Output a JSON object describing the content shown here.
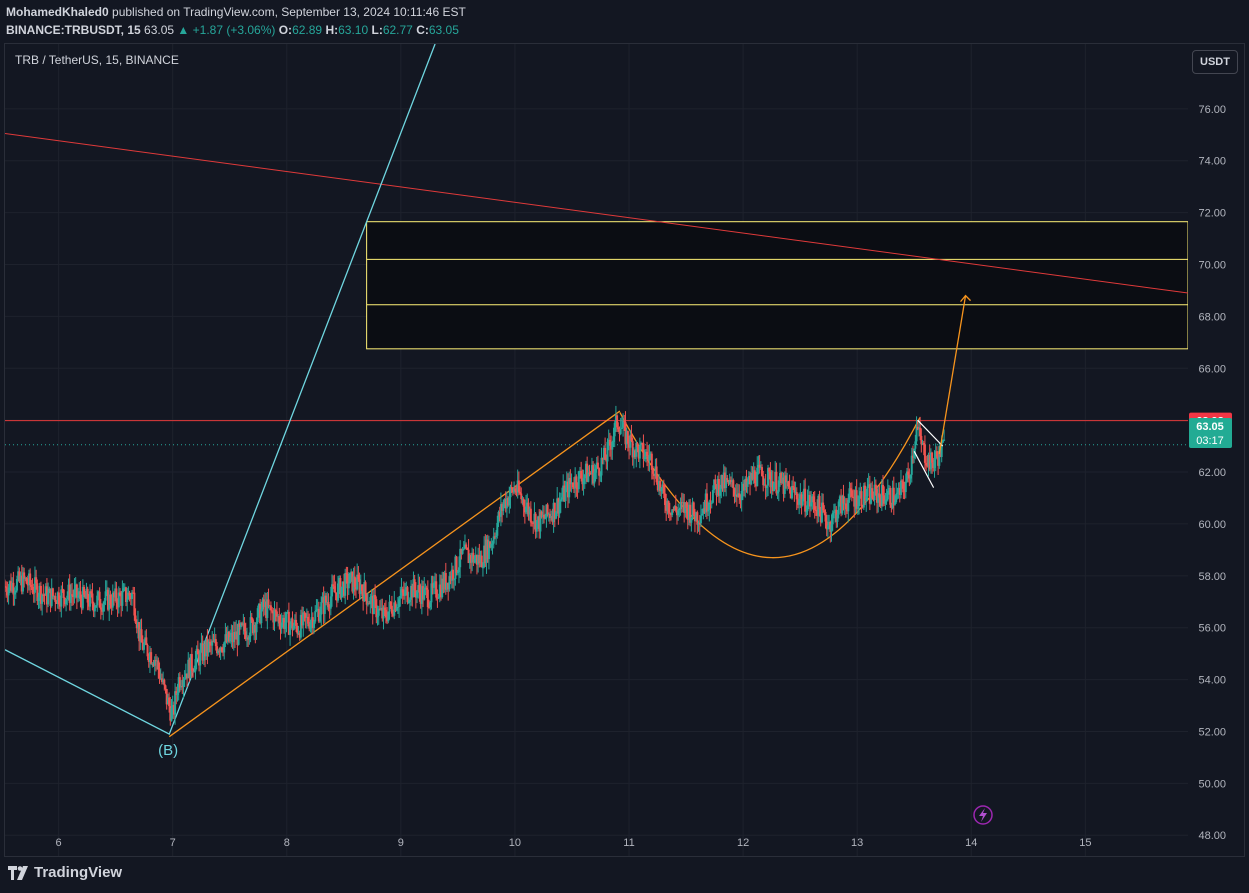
{
  "header": {
    "author": "MohamedKhaled0",
    "published": "published on TradingView.com, September 13, 2024 10:11:46 EST",
    "symbol": "BINANCE:TRBUSDT, 15",
    "last": "63.05",
    "change": "+1.87 (+3.06%)",
    "o_label": "O:",
    "o": "62.89",
    "h_label": "H:",
    "h": "63.10",
    "l_label": "L:",
    "l": "62.77",
    "c_label": "C:",
    "c": "63.05"
  },
  "chart_title": "TRB / TetherUS, 15, BINANCE",
  "currency_button": "USDT",
  "footer_brand": "TradingView",
  "colors": {
    "background": "#131722",
    "up": "#26a69a",
    "down": "#ef5350",
    "grid": "#1e222d",
    "trend_cyan": "#6fd6e0",
    "trend_orange": "#f7941d",
    "zone_yellow": "#fff176",
    "resistance_red": "#f23645"
  },
  "chart_data": {
    "type": "candlestick",
    "x_ticks": [
      "6",
      "7",
      "8",
      "9",
      "10",
      "11",
      "12",
      "13",
      "14",
      "15"
    ],
    "y_ticks": [
      "76.00",
      "74.00",
      "72.00",
      "70.00",
      "68.00",
      "66.00",
      "64.00",
      "62.00",
      "60.00",
      "58.00",
      "56.00",
      "54.00",
      "52.00",
      "50.00",
      "48.00"
    ],
    "ylim": [
      47.2,
      78.5
    ],
    "xlim": [
      5.53,
      15.9
    ],
    "price_path": [
      [
        5.53,
        57.6
      ],
      [
        5.7,
        57.8
      ],
      [
        5.9,
        57.2
      ],
      [
        6.1,
        57.3
      ],
      [
        6.3,
        57.0
      ],
      [
        6.5,
        57.1
      ],
      [
        6.65,
        57.3
      ],
      [
        6.72,
        55.4
      ],
      [
        6.85,
        54.8
      ],
      [
        6.95,
        53.2
      ],
      [
        7.0,
        52.6
      ],
      [
        7.05,
        54.0
      ],
      [
        7.15,
        54.5
      ],
      [
        7.3,
        55.2
      ],
      [
        7.5,
        55.5
      ],
      [
        7.7,
        56.1
      ],
      [
        7.8,
        56.8
      ],
      [
        7.95,
        56.3
      ],
      [
        8.1,
        56.0
      ],
      [
        8.25,
        56.5
      ],
      [
        8.4,
        57.3
      ],
      [
        8.55,
        57.8
      ],
      [
        8.65,
        57.6
      ],
      [
        8.75,
        56.9
      ],
      [
        8.85,
        56.4
      ],
      [
        8.95,
        57.0
      ],
      [
        9.1,
        57.5
      ],
      [
        9.25,
        57.2
      ],
      [
        9.4,
        57.8
      ],
      [
        9.55,
        58.8
      ],
      [
        9.7,
        58.6
      ],
      [
        9.8,
        59.4
      ],
      [
        9.9,
        60.8
      ],
      [
        10.0,
        61.4
      ],
      [
        10.1,
        60.7
      ],
      [
        10.2,
        60.0
      ],
      [
        10.35,
        60.6
      ],
      [
        10.5,
        61.6
      ],
      [
        10.6,
        61.9
      ],
      [
        10.7,
        62.0
      ],
      [
        10.8,
        62.6
      ],
      [
        10.9,
        64.0
      ],
      [
        10.97,
        63.4
      ],
      [
        11.05,
        62.9
      ],
      [
        11.2,
        62.5
      ],
      [
        11.3,
        61.0
      ],
      [
        11.4,
        60.5
      ],
      [
        11.5,
        60.6
      ],
      [
        11.6,
        60.3
      ],
      [
        11.7,
        61.0
      ],
      [
        11.8,
        61.6
      ],
      [
        11.9,
        61.4
      ],
      [
        12.0,
        61.2
      ],
      [
        12.1,
        61.9
      ],
      [
        12.2,
        61.8
      ],
      [
        12.35,
        61.5
      ],
      [
        12.5,
        61.0
      ],
      [
        12.65,
        60.7
      ],
      [
        12.75,
        60.0
      ],
      [
        12.85,
        60.7
      ],
      [
        12.95,
        61.0
      ],
      [
        13.1,
        61.1
      ],
      [
        13.25,
        61.1
      ],
      [
        13.35,
        61.0
      ],
      [
        13.45,
        61.8
      ],
      [
        13.52,
        63.7
      ],
      [
        13.58,
        62.8
      ],
      [
        13.65,
        62.3
      ],
      [
        13.72,
        62.7
      ],
      [
        13.77,
        63.05
      ]
    ],
    "annotations": {
      "wave_label": "(B)",
      "resistance_price": "63.98",
      "last_price": "63.05",
      "countdown": "03:17"
    },
    "drawings": {
      "resistance_line": 63.98,
      "zone_outer": [
        66.75,
        71.65
      ],
      "zone_inner_lines": [
        70.2,
        68.45
      ],
      "cyan_trendline": [
        [
          5.53,
          55.15
        ],
        [
          6.97,
          51.9
        ],
        [
          9.3,
          78.5
        ]
      ],
      "red_trendline": [
        [
          5.53,
          75.05
        ],
        [
          15.9,
          68.9
        ]
      ],
      "orange_channel": [
        [
          6.97,
          51.8
        ],
        [
          10.92,
          64.35
        ]
      ],
      "cup_curve": [
        [
          10.92,
          64.3
        ],
        [
          12.25,
          58.7
        ],
        [
          13.55,
          64.1
        ]
      ],
      "breakout_arrow": [
        [
          13.72,
          62.7
        ],
        [
          13.95,
          68.8
        ]
      ]
    }
  }
}
